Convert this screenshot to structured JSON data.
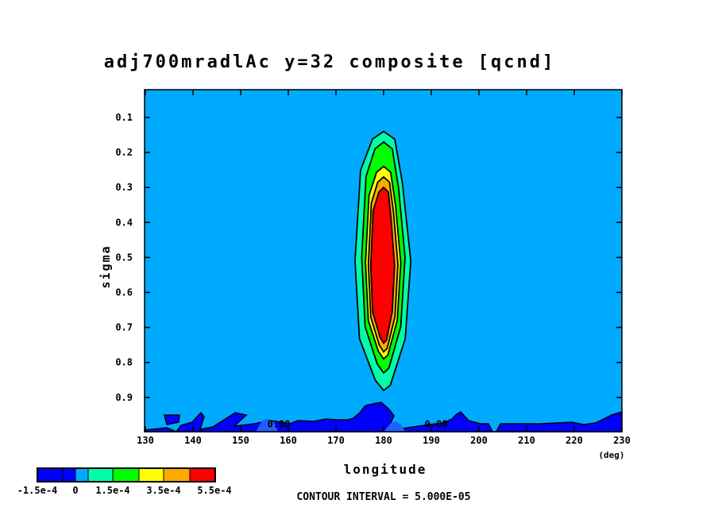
{
  "chart_data": {
    "type": "heatmap",
    "subtype": "filled-contour",
    "title": "adj700mradlAc y=32 composite [qcnd]",
    "xlabel": "longitude",
    "xunit": "(deg)",
    "ylabel": "sigma",
    "xlim": [
      130,
      230
    ],
    "ylim": [
      0.02,
      1.0
    ],
    "y_inverted": true,
    "x_ticks": [
      130,
      140,
      150,
      160,
      170,
      180,
      190,
      200,
      210,
      220,
      230
    ],
    "y_ticks": [
      0.1,
      0.2,
      0.3,
      0.4,
      0.5,
      0.6,
      0.7,
      0.8,
      0.9
    ],
    "contour_interval": "CONTOUR INTERVAL = 5.000E-05",
    "contour_labels": [
      {
        "text": "0.00",
        "lon": 158,
        "sigma": 0.99
      },
      {
        "text": "0.00",
        "lon": 191,
        "sigma": 0.99
      }
    ],
    "background_color": "#00aaff",
    "colorbar": {
      "colors": [
        "#0000ff",
        "#0000ff",
        "#00aaff",
        "#00ffaa",
        "#00ff00",
        "#ffff00",
        "#ffaa00",
        "#ff0000"
      ],
      "labels": [
        "-1.5e-4",
        "0",
        "1.5e-4",
        "3.5e-4",
        "5.5e-4"
      ]
    },
    "features": [
      {
        "name": "positive-maximum",
        "center_lon": 180,
        "center_sigma": 0.52,
        "levels": [
          {
            "color": "#00ffaa",
            "lon": [
              174.0,
              185.7
            ],
            "sigma": [
              0.14,
              0.88
            ]
          },
          {
            "color": "#00ff00",
            "lon": [
              175.4,
              184.5
            ],
            "sigma": [
              0.17,
              0.83
            ]
          },
          {
            "color": "#ffff00",
            "lon": [
              176.2,
              183.6
            ],
            "sigma": [
              0.24,
              0.79
            ]
          },
          {
            "color": "#ffaa00",
            "lon": [
              176.8,
              183.0
            ],
            "sigma": [
              0.27,
              0.77
            ]
          },
          {
            "color": "#ff0000",
            "lon": [
              177.3,
              182.3
            ],
            "sigma": [
              0.3,
              0.745
            ]
          }
        ]
      }
    ]
  }
}
